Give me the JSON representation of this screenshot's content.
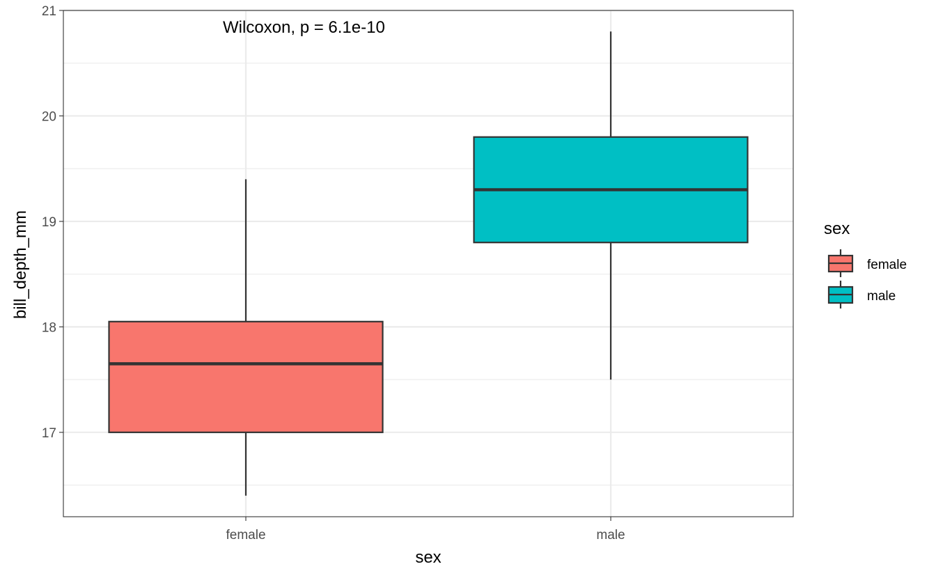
{
  "chart_data": {
    "type": "box",
    "xlabel": "sex",
    "ylabel": "bill_depth_mm",
    "ylim": [
      16.2,
      21
    ],
    "yticks": [
      17,
      18,
      19,
      20,
      21
    ],
    "grid": true,
    "annotation": "Wilcoxon, p = 6.1e-10",
    "categories": [
      "female",
      "male"
    ],
    "boxes": [
      {
        "category": "female",
        "whisker_low": 16.4,
        "q1": 17.0,
        "median": 17.65,
        "q3": 18.05,
        "whisker_high": 19.4,
        "color": "#F8766D"
      },
      {
        "category": "male",
        "whisker_low": 17.5,
        "q1": 18.8,
        "median": 19.3,
        "q3": 19.8,
        "whisker_high": 20.8,
        "color": "#00BFC4"
      }
    ],
    "legend": {
      "title": "sex",
      "position": "right",
      "items": [
        {
          "label": "female",
          "color": "#F8766D"
        },
        {
          "label": "male",
          "color": "#00BFC4"
        }
      ]
    }
  }
}
